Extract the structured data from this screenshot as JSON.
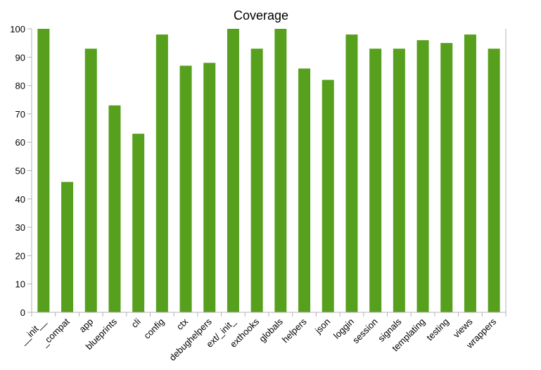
{
  "chart_data": {
    "type": "bar",
    "title": "Coverage",
    "xlabel": "",
    "ylabel": "",
    "ylim": [
      0,
      100
    ],
    "yticks": [
      0,
      10,
      20,
      30,
      40,
      50,
      60,
      70,
      80,
      90,
      100
    ],
    "grid": false,
    "legend": "none",
    "bar_color": "#57a01e",
    "axis_color": "#b3b3b3",
    "categories": [
      "__init__",
      "_compat",
      "app",
      "blueprints",
      "cli",
      "config",
      "ctx",
      "debughelpers",
      "ext/_init_",
      "exthooks",
      "globals",
      "helpers",
      "json",
      "loggin",
      "session",
      "signals",
      "templating",
      "testing",
      "views",
      "wrappers"
    ],
    "values": [
      100,
      46,
      93,
      73,
      63,
      98,
      87,
      88,
      100,
      93,
      100,
      86,
      82,
      98,
      93,
      93,
      96,
      95,
      98,
      93
    ]
  }
}
